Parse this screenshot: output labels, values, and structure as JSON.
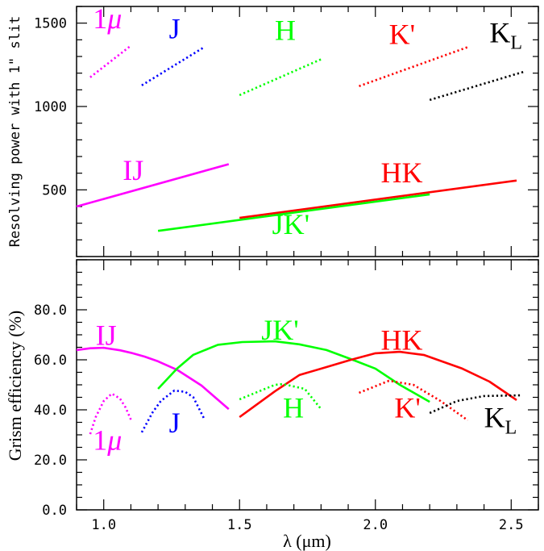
{
  "chart_data": [
    {
      "type": "line",
      "panel": "top",
      "ylabel": "Resolving power with 1\" slit",
      "xlim": [
        0.9,
        2.6
      ],
      "ylim": [
        100,
        1600
      ],
      "yticks": [
        500,
        1000,
        1500
      ],
      "ytick_labels": [
        "500",
        "1000",
        "1500"
      ],
      "grid": false,
      "series": [
        {
          "name": "1μ",
          "color": "#ff00ff",
          "style": "dotted",
          "x": [
            0.95,
            1.1
          ],
          "y": [
            1175,
            1365
          ]
        },
        {
          "name": "J",
          "color": "#0000ff",
          "style": "dotted",
          "x": [
            1.14,
            1.37
          ],
          "y": [
            1127,
            1356
          ]
        },
        {
          "name": "H",
          "color": "#00ff00",
          "style": "dotted",
          "x": [
            1.5,
            1.8
          ],
          "y": [
            1068,
            1283
          ]
        },
        {
          "name": "K'",
          "color": "#ff0000",
          "style": "dotted",
          "x": [
            1.94,
            2.34
          ],
          "y": [
            1122,
            1356
          ]
        },
        {
          "name": "KL",
          "color": "#000000",
          "style": "dotted",
          "x": [
            2.2,
            2.55
          ],
          "y": [
            1039,
            1210
          ]
        },
        {
          "name": "IJ",
          "color": "#ff00ff",
          "style": "solid",
          "x": [
            0.9,
            1.46
          ],
          "y": [
            400,
            654
          ]
        },
        {
          "name": "HK",
          "color": "#ff0000",
          "style": "solid",
          "x": [
            1.5,
            2.52
          ],
          "y": [
            332,
            556
          ]
        },
        {
          "name": "JK'",
          "color": "#00ff00",
          "style": "solid",
          "x": [
            1.2,
            2.2
          ],
          "y": [
            254,
            473
          ]
        }
      ],
      "annotations": [
        {
          "text": "1",
          "italic": "μ",
          "sub": "",
          "color": "#ff00ff",
          "x": 0.96,
          "y": 1470
        },
        {
          "text": "J",
          "italic": "",
          "sub": "",
          "color": "#0000ff",
          "x": 1.24,
          "y": 1410
        },
        {
          "text": "H",
          "italic": "",
          "sub": "",
          "color": "#00ff00",
          "x": 1.63,
          "y": 1400
        },
        {
          "text": "K'",
          "italic": "",
          "sub": "",
          "color": "#ff0000",
          "x": 2.05,
          "y": 1375
        },
        {
          "text": "K",
          "italic": "",
          "sub": "L",
          "color": "#000000",
          "x": 2.42,
          "y": 1385
        },
        {
          "text": "IJ",
          "italic": "",
          "sub": "",
          "color": "#ff00ff",
          "x": 1.07,
          "y": 560
        },
        {
          "text": "HK",
          "italic": "",
          "sub": "",
          "color": "#ff0000",
          "x": 2.02,
          "y": 545
        },
        {
          "text": "JK'",
          "italic": "",
          "sub": "",
          "color": "#00ff00",
          "x": 1.62,
          "y": 235
        }
      ]
    },
    {
      "type": "line",
      "panel": "bottom",
      "xlabel": "λ (μm)",
      "ylabel": "Grism efficiency (%)",
      "xlim": [
        0.9,
        2.6
      ],
      "ylim": [
        0,
        100
      ],
      "xticks": [
        1.0,
        1.5,
        2.0,
        2.5
      ],
      "xtick_labels": [
        "1.0",
        "1.5",
        "2.0",
        "2.5"
      ],
      "yticks": [
        0,
        20,
        40,
        60,
        80
      ],
      "ytick_labels": [
        "0.0",
        "20.0",
        "40.0",
        "60.0",
        "80.0"
      ],
      "grid": false,
      "series": [
        {
          "name": "IJ",
          "color": "#ff00ff",
          "style": "solid",
          "x": [
            0.9,
            0.95,
            1.0,
            1.06,
            1.1,
            1.15,
            1.2,
            1.27,
            1.36,
            1.46
          ],
          "y": [
            63.9,
            64.6,
            64.8,
            63.8,
            62.8,
            61.3,
            59.4,
            56.0,
            49.7,
            40.3
          ]
        },
        {
          "name": "1μ",
          "color": "#ff00ff",
          "style": "dotted",
          "x": [
            0.95,
            0.97,
            1.0,
            1.03,
            1.06,
            1.08,
            1.1
          ],
          "y": [
            30.3,
            37.0,
            43.5,
            46.5,
            44.5,
            41.0,
            36.1
          ]
        },
        {
          "name": "J",
          "color": "#0000ff",
          "style": "dotted",
          "x": [
            1.14,
            1.18,
            1.21,
            1.26,
            1.3,
            1.33,
            1.37
          ],
          "y": [
            31.0,
            39.0,
            43.5,
            47.7,
            47.2,
            45.0,
            36.4
          ]
        },
        {
          "name": "JK'",
          "color": "#00ff00",
          "style": "solid",
          "x": [
            1.2,
            1.27,
            1.33,
            1.42,
            1.51,
            1.63,
            1.72,
            1.82,
            1.91,
            2.0,
            2.09,
            2.2
          ],
          "y": [
            48.4,
            56.5,
            62.0,
            66.0,
            67.1,
            67.4,
            66.2,
            63.9,
            60.3,
            56.5,
            50.0,
            43.2
          ]
        },
        {
          "name": "HK",
          "color": "#ff0000",
          "style": "solid",
          "x": [
            1.5,
            1.63,
            1.72,
            1.82,
            1.91,
            2.0,
            2.09,
            2.18,
            2.32,
            2.42,
            2.52
          ],
          "y": [
            37.1,
            47.4,
            53.9,
            57.1,
            60.0,
            62.6,
            63.2,
            61.9,
            56.5,
            51.3,
            43.9
          ]
        },
        {
          "name": "H",
          "color": "#00ff00",
          "style": "dotted",
          "x": [
            1.5,
            1.63,
            1.66,
            1.74,
            1.8
          ],
          "y": [
            44.2,
            50.0,
            50.3,
            48.4,
            40.3
          ]
        },
        {
          "name": "K'",
          "color": "#ff0000",
          "style": "dotted",
          "x": [
            1.94,
            2.05,
            2.14,
            2.24,
            2.34
          ],
          "y": [
            46.8,
            51.6,
            50.0,
            43.5,
            35.8
          ]
        },
        {
          "name": "KL",
          "color": "#000000",
          "style": "dotted",
          "x": [
            2.2,
            2.3,
            2.4,
            2.54
          ],
          "y": [
            38.7,
            43.5,
            45.5,
            45.8
          ]
        }
      ],
      "annotations": [
        {
          "text": "IJ",
          "italic": "",
          "sub": "",
          "color": "#ff00ff",
          "x": 0.97,
          "y": 66
        },
        {
          "text": "1",
          "italic": "μ",
          "sub": "",
          "color": "#ff00ff",
          "x": 0.96,
          "y": 24
        },
        {
          "text": "J",
          "italic": "",
          "sub": "",
          "color": "#0000ff",
          "x": 1.24,
          "y": 31
        },
        {
          "text": "JK'",
          "italic": "",
          "sub": "",
          "color": "#00ff00",
          "x": 1.58,
          "y": 68
        },
        {
          "text": "H",
          "italic": "",
          "sub": "",
          "color": "#00ff00",
          "x": 1.66,
          "y": 37
        },
        {
          "text": "HK",
          "italic": "",
          "sub": "",
          "color": "#ff0000",
          "x": 2.02,
          "y": 64
        },
        {
          "text": "K'",
          "italic": "",
          "sub": "",
          "color": "#ff0000",
          "x": 2.07,
          "y": 37
        },
        {
          "text": "K",
          "italic": "",
          "sub": "L",
          "color": "#000000",
          "x": 2.4,
          "y": 33
        }
      ]
    }
  ]
}
